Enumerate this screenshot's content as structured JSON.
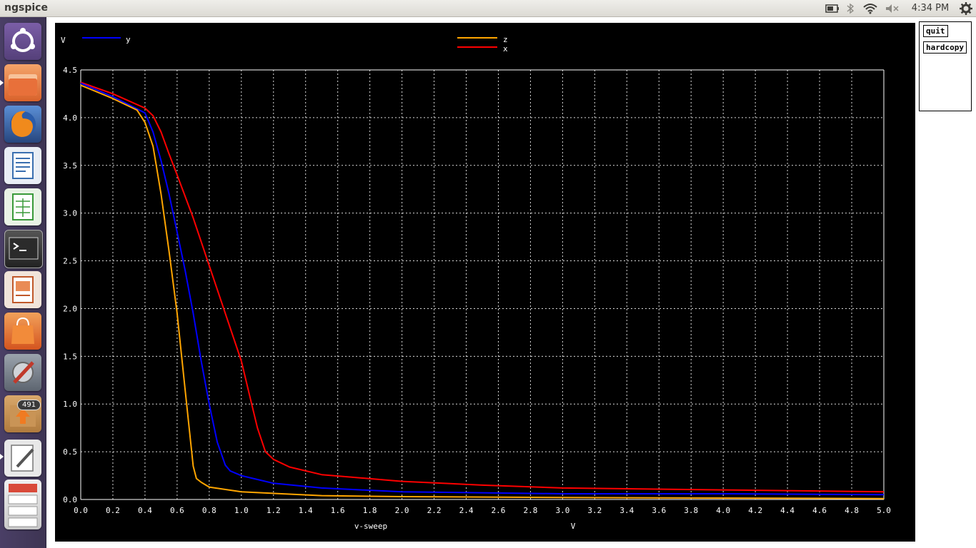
{
  "topbar": {
    "app_title": "ngspice",
    "clock": "4:34 PM",
    "tray_icons": [
      "battery-icon",
      "bluetooth-icon",
      "wifi-icon",
      "volume-muted-icon",
      "gear-icon"
    ]
  },
  "launcher": {
    "items": [
      {
        "name": "ubuntu-dash",
        "icon": "ubuntu-logo-icon"
      },
      {
        "name": "files",
        "icon": "folder-icon"
      },
      {
        "name": "firefox",
        "icon": "firefox-icon"
      },
      {
        "name": "writer",
        "icon": "document-icon"
      },
      {
        "name": "calc",
        "icon": "spreadsheet-icon"
      },
      {
        "name": "terminal",
        "icon": "terminal-icon"
      },
      {
        "name": "impress",
        "icon": "presentation-icon"
      },
      {
        "name": "software-center",
        "icon": "shopping-bag-icon"
      },
      {
        "name": "system-settings",
        "icon": "wrench-icon"
      },
      {
        "name": "update-manager",
        "icon": "update-icon"
      },
      {
        "name": "text-editor",
        "icon": "pencil-icon"
      },
      {
        "name": "workspaces",
        "icon": "workspaces-icon"
      }
    ],
    "update_badge": "491"
  },
  "buttons": {
    "quit": "quit",
    "hardcopy": "hardcopy"
  },
  "colors": {
    "background": "#000000",
    "grid": "#ffffff",
    "y": "#0000ff",
    "z": "#ffa500",
    "x": "#ff0000"
  },
  "chart_data": {
    "type": "line",
    "title": "",
    "xlabel": "v-sweep",
    "xunit": "V",
    "ylabel": "V",
    "xlim": [
      0,
      5
    ],
    "ylim": [
      0,
      4.5
    ],
    "x_ticks": [
      "0.0",
      "0.2",
      "0.4",
      "0.6",
      "0.8",
      "1.0",
      "1.2",
      "1.4",
      "1.6",
      "1.8",
      "2.0",
      "2.2",
      "2.4",
      "2.6",
      "2.8",
      "3.0",
      "3.2",
      "3.4",
      "3.6",
      "3.8",
      "4.0",
      "4.2",
      "4.4",
      "4.6",
      "4.8",
      "5.0"
    ],
    "y_ticks": [
      "0.0",
      "0.5",
      "1.0",
      "1.5",
      "2.0",
      "2.5",
      "3.0",
      "3.5",
      "4.0",
      "4.5"
    ],
    "grid": true,
    "series": [
      {
        "name": "y",
        "color": "#0000ff",
        "x": [
          0,
          0.2,
          0.4,
          0.45,
          0.5,
          0.55,
          0.6,
          0.65,
          0.7,
          0.75,
          0.8,
          0.85,
          0.9,
          0.93,
          1.0,
          1.2,
          1.5,
          2.0,
          2.5,
          3.0,
          4.0,
          5.0
        ],
        "y": [
          4.36,
          4.22,
          4.05,
          3.85,
          3.55,
          3.2,
          2.8,
          2.4,
          1.95,
          1.45,
          1.0,
          0.6,
          0.36,
          0.3,
          0.25,
          0.17,
          0.12,
          0.08,
          0.07,
          0.06,
          0.06,
          0.05
        ]
      },
      {
        "name": "z",
        "color": "#ffa500",
        "x": [
          0,
          0.2,
          0.35,
          0.4,
          0.45,
          0.5,
          0.55,
          0.6,
          0.65,
          0.7,
          0.72,
          0.75,
          0.8,
          1.0,
          1.5,
          2.0,
          3.0,
          5.0
        ],
        "y": [
          4.34,
          4.2,
          4.08,
          3.95,
          3.7,
          3.2,
          2.6,
          1.95,
          1.15,
          0.35,
          0.22,
          0.18,
          0.13,
          0.08,
          0.04,
          0.03,
          0.02,
          0.01
        ]
      },
      {
        "name": "x",
        "color": "#ff0000",
        "x": [
          0,
          0.2,
          0.4,
          0.45,
          0.5,
          0.55,
          0.6,
          0.7,
          0.8,
          0.9,
          1.0,
          1.05,
          1.1,
          1.15,
          1.2,
          1.3,
          1.5,
          2.0,
          2.5,
          3.0,
          4.0,
          5.0
        ],
        "y": [
          4.37,
          4.25,
          4.1,
          4.02,
          3.85,
          3.62,
          3.4,
          2.95,
          2.45,
          1.95,
          1.45,
          1.1,
          0.75,
          0.5,
          0.42,
          0.34,
          0.26,
          0.19,
          0.15,
          0.12,
          0.1,
          0.08
        ]
      }
    ],
    "legend": [
      {
        "name": "y",
        "color": "#0000ff",
        "placement": "top-left"
      },
      {
        "name": "z",
        "color": "#ffa500",
        "placement": "top-center"
      },
      {
        "name": "x",
        "color": "#ff0000",
        "placement": "top-center"
      }
    ]
  }
}
